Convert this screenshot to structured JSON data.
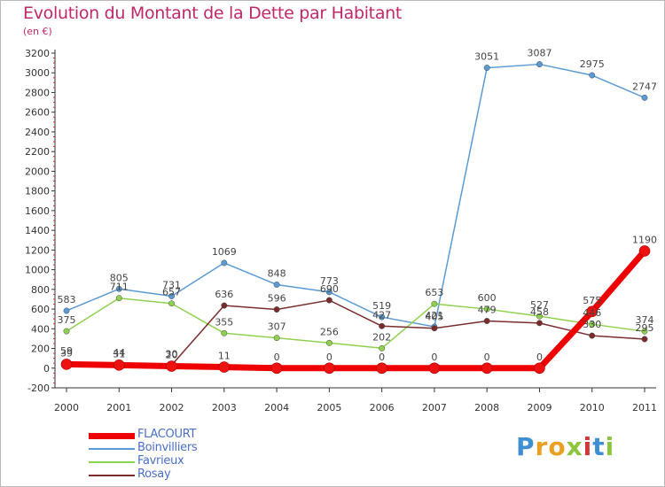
{
  "header": {
    "title": "Evolution du Montant de la Dette par Habitant",
    "subtitle": "(en €)"
  },
  "logo": {
    "letters": [
      {
        "ch": "P",
        "color": "#3f8fd2"
      },
      {
        "ch": "r",
        "color": "#e9a023"
      },
      {
        "ch": "o",
        "color": "#e9a023"
      },
      {
        "ch": "x",
        "color": "#8cc63f"
      },
      {
        "ch": "i",
        "color": "#d6363b"
      },
      {
        "ch": "t",
        "color": "#3f8fd2"
      },
      {
        "ch": "i",
        "color": "#8cc63f"
      }
    ]
  },
  "chart_data": {
    "type": "line",
    "title": "Evolution du Montant de la Dette par Habitant",
    "subtitle": "(en €)",
    "xlabel": "",
    "ylabel": "",
    "x": [
      "2000",
      "2001",
      "2002",
      "2003",
      "2004",
      "2005",
      "2006",
      "2007",
      "2008",
      "2009",
      "2010",
      "2011"
    ],
    "ylim": [
      -200,
      3200
    ],
    "yticks": [
      -200,
      0,
      200,
      400,
      600,
      800,
      1000,
      1200,
      1400,
      1600,
      1800,
      2000,
      2200,
      2400,
      2600,
      2800,
      3000,
      3200
    ],
    "grid": false,
    "legend": "bottom-left",
    "series": [
      {
        "name": "FLACOURT",
        "color": "#ee0000",
        "values": [
          39,
          31,
          20,
          11,
          0,
          0,
          0,
          0,
          0,
          0,
          575,
          1190
        ]
      },
      {
        "name": "Boinvilliers",
        "color": "#5b9bd5",
        "values": [
          583,
          805,
          731,
          1069,
          848,
          773,
          519,
          421,
          3051,
          3087,
          2975,
          2747
        ]
      },
      {
        "name": "Favrieux",
        "color": "#8fd14f",
        "values": [
          375,
          711,
          657,
          355,
          307,
          256,
          202,
          653,
          600,
          527,
          446,
          374
        ]
      },
      {
        "name": "Rosay",
        "color": "#7a2c2c",
        "values": [
          59,
          44,
          30,
          636,
          596,
          690,
          427,
          405,
          479,
          458,
          330,
          295
        ]
      }
    ]
  }
}
